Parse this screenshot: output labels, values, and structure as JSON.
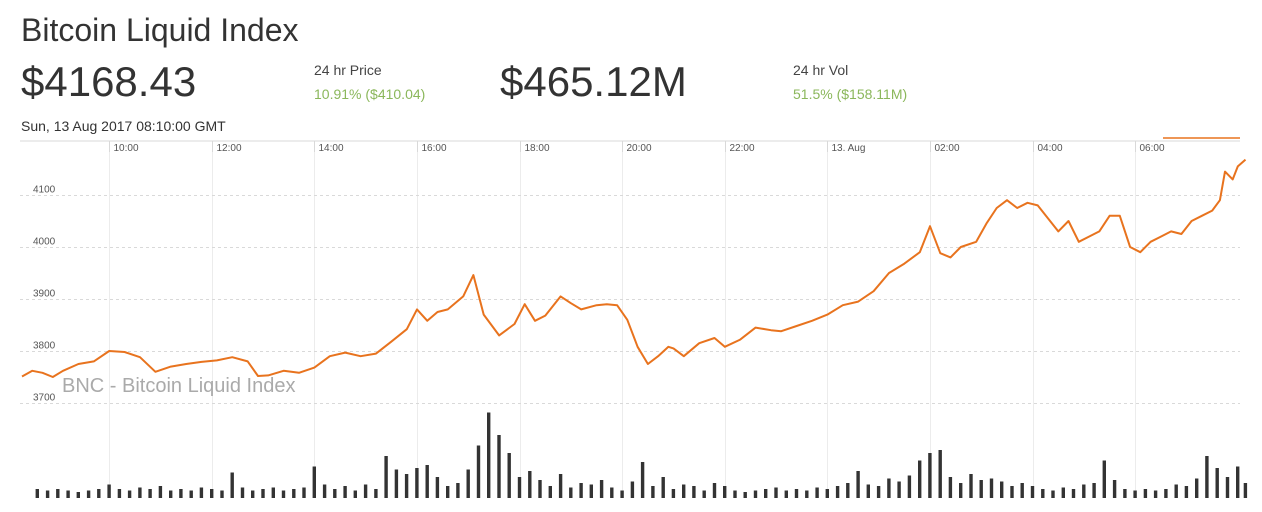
{
  "header": {
    "title": "Bitcoin Liquid Index",
    "price": "$4168.43",
    "price_label": "24 hr Price",
    "price_change": "10.91% ($410.04)",
    "volume": "$465.12M",
    "volume_label": "24 hr Vol",
    "volume_change": "51.5% ($158.11M)",
    "timestamp": "Sun, 13 Aug 2017 08:10:00 GMT"
  },
  "colors": {
    "line": "#e8731e",
    "volume_bar": "#333333",
    "change_positive": "#8bb75b",
    "grid": "#d9d9d9"
  },
  "chart_data": {
    "type": "line",
    "watermark": "BNC - Bitcoin Liquid Index",
    "x_ticks": [
      "10:00",
      "12:00",
      "14:00",
      "16:00",
      "18:00",
      "20:00",
      "22:00",
      "13. Aug",
      "02:00",
      "04:00",
      "06:00"
    ],
    "y_ticks": [
      3700,
      3800,
      3900,
      4000,
      4100
    ],
    "ylim": [
      3640,
      4190
    ],
    "x_range_hours": [
      8.3,
      32.15
    ],
    "grid": true,
    "price_series": [
      [
        8.3,
        3751
      ],
      [
        8.5,
        3762
      ],
      [
        8.7,
        3758
      ],
      [
        8.9,
        3750
      ],
      [
        9.1,
        3762
      ],
      [
        9.4,
        3775
      ],
      [
        9.7,
        3780
      ],
      [
        10.0,
        3800
      ],
      [
        10.3,
        3798
      ],
      [
        10.6,
        3788
      ],
      [
        10.9,
        3760
      ],
      [
        11.2,
        3770
      ],
      [
        11.5,
        3775
      ],
      [
        11.8,
        3779
      ],
      [
        12.1,
        3782
      ],
      [
        12.4,
        3788
      ],
      [
        12.7,
        3780
      ],
      [
        12.9,
        3752
      ],
      [
        13.1,
        3753
      ],
      [
        13.4,
        3762
      ],
      [
        13.7,
        3758
      ],
      [
        14.0,
        3768
      ],
      [
        14.3,
        3790
      ],
      [
        14.6,
        3797
      ],
      [
        14.9,
        3790
      ],
      [
        15.2,
        3795
      ],
      [
        15.5,
        3818
      ],
      [
        15.8,
        3842
      ],
      [
        16.0,
        3880
      ],
      [
        16.2,
        3858
      ],
      [
        16.4,
        3875
      ],
      [
        16.6,
        3880
      ],
      [
        16.9,
        3905
      ],
      [
        17.1,
        3946
      ],
      [
        17.3,
        3870
      ],
      [
        17.6,
        3830
      ],
      [
        17.9,
        3852
      ],
      [
        18.1,
        3890
      ],
      [
        18.3,
        3858
      ],
      [
        18.5,
        3868
      ],
      [
        18.8,
        3905
      ],
      [
        19.0,
        3892
      ],
      [
        19.2,
        3880
      ],
      [
        19.5,
        3888
      ],
      [
        19.7,
        3890
      ],
      [
        19.9,
        3888
      ],
      [
        20.1,
        3860
      ],
      [
        20.3,
        3808
      ],
      [
        20.5,
        3775
      ],
      [
        20.7,
        3790
      ],
      [
        20.9,
        3808
      ],
      [
        21.0,
        3805
      ],
      [
        21.2,
        3790
      ],
      [
        21.5,
        3815
      ],
      [
        21.8,
        3825
      ],
      [
        22.0,
        3808
      ],
      [
        22.3,
        3822
      ],
      [
        22.6,
        3845
      ],
      [
        22.9,
        3840
      ],
      [
        23.1,
        3838
      ],
      [
        23.4,
        3848
      ],
      [
        23.7,
        3858
      ],
      [
        24.0,
        3870
      ],
      [
        24.3,
        3888
      ],
      [
        24.6,
        3895
      ],
      [
        24.9,
        3915
      ],
      [
        25.2,
        3950
      ],
      [
        25.5,
        3968
      ],
      [
        25.8,
        3990
      ],
      [
        26.0,
        4040
      ],
      [
        26.2,
        3988
      ],
      [
        26.4,
        3980
      ],
      [
        26.6,
        4000
      ],
      [
        26.9,
        4010
      ],
      [
        27.1,
        4045
      ],
      [
        27.3,
        4075
      ],
      [
        27.5,
        4090
      ],
      [
        27.7,
        4075
      ],
      [
        27.9,
        4085
      ],
      [
        28.1,
        4080
      ],
      [
        28.3,
        4055
      ],
      [
        28.5,
        4030
      ],
      [
        28.7,
        4050
      ],
      [
        28.9,
        4010
      ],
      [
        29.1,
        4020
      ],
      [
        29.3,
        4030
      ],
      [
        29.5,
        4060
      ],
      [
        29.7,
        4060
      ],
      [
        29.9,
        4000
      ],
      [
        30.1,
        3990
      ],
      [
        30.3,
        4010
      ],
      [
        30.5,
        4020
      ],
      [
        30.7,
        4030
      ],
      [
        30.9,
        4025
      ],
      [
        31.1,
        4050
      ],
      [
        31.3,
        4060
      ],
      [
        31.5,
        4070
      ],
      [
        31.65,
        4090
      ],
      [
        31.75,
        4145
      ],
      [
        31.9,
        4130
      ],
      [
        32.0,
        4155
      ],
      [
        32.15,
        4168
      ]
    ],
    "volume_series": [
      [
        8.6,
        0.06
      ],
      [
        8.8,
        0.05
      ],
      [
        9.0,
        0.06
      ],
      [
        9.2,
        0.05
      ],
      [
        9.4,
        0.04
      ],
      [
        9.6,
        0.05
      ],
      [
        9.8,
        0.06
      ],
      [
        10.0,
        0.09
      ],
      [
        10.2,
        0.06
      ],
      [
        10.4,
        0.05
      ],
      [
        10.6,
        0.07
      ],
      [
        10.8,
        0.06
      ],
      [
        11.0,
        0.08
      ],
      [
        11.2,
        0.05
      ],
      [
        11.4,
        0.06
      ],
      [
        11.6,
        0.05
      ],
      [
        11.8,
        0.07
      ],
      [
        12.0,
        0.06
      ],
      [
        12.2,
        0.05
      ],
      [
        12.4,
        0.17
      ],
      [
        12.6,
        0.07
      ],
      [
        12.8,
        0.05
      ],
      [
        13.0,
        0.06
      ],
      [
        13.2,
        0.07
      ],
      [
        13.4,
        0.05
      ],
      [
        13.6,
        0.06
      ],
      [
        13.8,
        0.07
      ],
      [
        14.0,
        0.21
      ],
      [
        14.2,
        0.09
      ],
      [
        14.4,
        0.06
      ],
      [
        14.6,
        0.08
      ],
      [
        14.8,
        0.05
      ],
      [
        15.0,
        0.09
      ],
      [
        15.2,
        0.06
      ],
      [
        15.4,
        0.28
      ],
      [
        15.6,
        0.19
      ],
      [
        15.8,
        0.16
      ],
      [
        16.0,
        0.2
      ],
      [
        16.2,
        0.22
      ],
      [
        16.4,
        0.14
      ],
      [
        16.6,
        0.08
      ],
      [
        16.8,
        0.1
      ],
      [
        17.0,
        0.19
      ],
      [
        17.2,
        0.35
      ],
      [
        17.4,
        0.57
      ],
      [
        17.6,
        0.42
      ],
      [
        17.8,
        0.3
      ],
      [
        18.0,
        0.14
      ],
      [
        18.2,
        0.18
      ],
      [
        18.4,
        0.12
      ],
      [
        18.6,
        0.08
      ],
      [
        18.8,
        0.16
      ],
      [
        19.0,
        0.07
      ],
      [
        19.2,
        0.1
      ],
      [
        19.4,
        0.09
      ],
      [
        19.6,
        0.12
      ],
      [
        19.8,
        0.07
      ],
      [
        20.0,
        0.05
      ],
      [
        20.2,
        0.11
      ],
      [
        20.4,
        0.24
      ],
      [
        20.6,
        0.08
      ],
      [
        20.8,
        0.14
      ],
      [
        21.0,
        0.06
      ],
      [
        21.2,
        0.09
      ],
      [
        21.4,
        0.08
      ],
      [
        21.6,
        0.05
      ],
      [
        21.8,
        0.1
      ],
      [
        22.0,
        0.08
      ],
      [
        22.2,
        0.05
      ],
      [
        22.4,
        0.04
      ],
      [
        22.6,
        0.05
      ],
      [
        22.8,
        0.06
      ],
      [
        23.0,
        0.07
      ],
      [
        23.2,
        0.05
      ],
      [
        23.4,
        0.06
      ],
      [
        23.6,
        0.05
      ],
      [
        23.8,
        0.07
      ],
      [
        24.0,
        0.06
      ],
      [
        24.2,
        0.08
      ],
      [
        24.4,
        0.1
      ],
      [
        24.6,
        0.18
      ],
      [
        24.8,
        0.09
      ],
      [
        25.0,
        0.08
      ],
      [
        25.2,
        0.13
      ],
      [
        25.4,
        0.11
      ],
      [
        25.6,
        0.15
      ],
      [
        25.8,
        0.25
      ],
      [
        26.0,
        0.3
      ],
      [
        26.2,
        0.32
      ],
      [
        26.4,
        0.14
      ],
      [
        26.6,
        0.1
      ],
      [
        26.8,
        0.16
      ],
      [
        27.0,
        0.12
      ],
      [
        27.2,
        0.13
      ],
      [
        27.4,
        0.11
      ],
      [
        27.6,
        0.08
      ],
      [
        27.8,
        0.1
      ],
      [
        28.0,
        0.08
      ],
      [
        28.2,
        0.06
      ],
      [
        28.4,
        0.05
      ],
      [
        28.6,
        0.07
      ],
      [
        28.8,
        0.06
      ],
      [
        29.0,
        0.09
      ],
      [
        29.2,
        0.1
      ],
      [
        29.4,
        0.25
      ],
      [
        29.6,
        0.12
      ],
      [
        29.8,
        0.06
      ],
      [
        30.0,
        0.05
      ],
      [
        30.2,
        0.06
      ],
      [
        30.4,
        0.05
      ],
      [
        30.6,
        0.06
      ],
      [
        30.8,
        0.09
      ],
      [
        31.0,
        0.08
      ],
      [
        31.2,
        0.13
      ],
      [
        31.4,
        0.28
      ],
      [
        31.6,
        0.2
      ],
      [
        31.8,
        0.14
      ],
      [
        32.0,
        0.21
      ],
      [
        32.15,
        0.1
      ]
    ]
  }
}
